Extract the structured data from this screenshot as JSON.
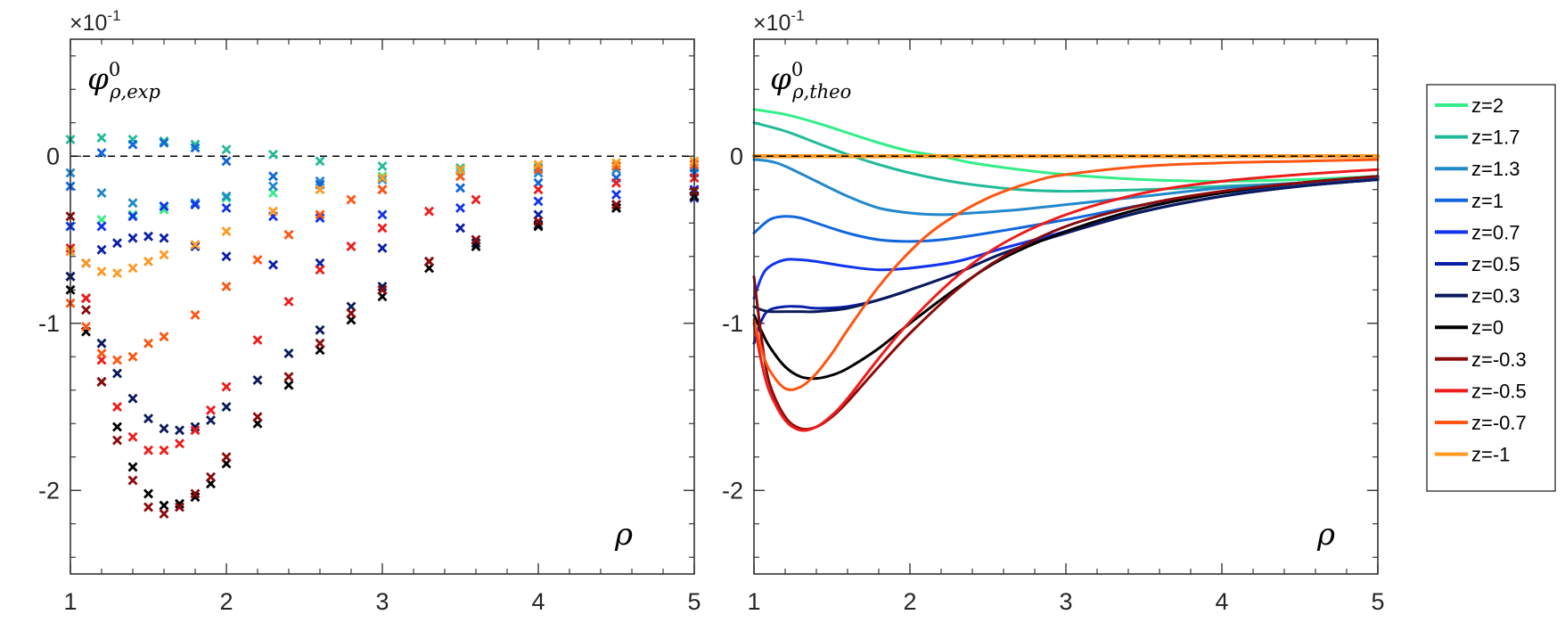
{
  "chart_data": [
    {
      "type": "scatter",
      "marker": "x",
      "y_multiplier": "×10",
      "y_multiplier_exp": "-1",
      "title_base": "φ",
      "title_sup": "0",
      "title_sub": "ρ,exp",
      "xlabel": "ρ",
      "xlim": [
        1,
        5
      ],
      "ylim": [
        -2.5,
        0.7
      ],
      "xticks": [
        "1",
        "2",
        "3",
        "4",
        "5"
      ],
      "yticks": [
        "0",
        "-1",
        "-2"
      ],
      "reference_line": {
        "y": 0,
        "style": "dashed",
        "color": "#000000"
      },
      "series": [
        {
          "name": "z=2",
          "color": "#33ee88",
          "x": [
            1.0,
            1.2,
            1.4,
            1.6,
            1.8,
            2.0,
            2.3,
            2.6,
            3.0,
            3.5,
            4.0,
            4.5,
            5.0
          ],
          "y": [
            -0.42,
            -0.38,
            -0.35,
            -0.32,
            -0.29,
            -0.25,
            -0.22,
            -0.17,
            -0.12,
            -0.09,
            -0.07,
            -0.06,
            -0.05
          ]
        },
        {
          "name": "z=1.7",
          "color": "#22bb99",
          "x": [
            1.0,
            1.2,
            1.4,
            1.6,
            1.8,
            2.0,
            2.3,
            2.6,
            3.0,
            3.5,
            4.0,
            4.5,
            5.0
          ],
          "y": [
            0.1,
            0.11,
            0.1,
            0.09,
            0.07,
            0.04,
            0.01,
            -0.03,
            -0.06,
            -0.07,
            -0.07,
            -0.06,
            -0.05
          ]
        },
        {
          "name": "z=1.3",
          "color": "#2288cc",
          "x": [
            1.0,
            1.2,
            1.4,
            1.6,
            1.8,
            2.0,
            2.3,
            2.6,
            3.0,
            3.5,
            4.0,
            4.5,
            5.0
          ],
          "y": [
            -0.1,
            -0.22,
            -0.28,
            -0.3,
            -0.28,
            -0.24,
            -0.18,
            -0.15,
            -0.14,
            -0.12,
            -0.1,
            -0.08,
            -0.07
          ]
        },
        {
          "name": "z=1",
          "color": "#1166dd",
          "x": [
            1.0,
            1.2,
            1.4,
            1.6,
            1.8,
            2.0,
            2.3,
            2.6,
            3.0,
            3.5,
            4.0,
            4.5,
            5.0
          ],
          "y": [
            -0.18,
            0.02,
            0.07,
            0.08,
            0.05,
            -0.03,
            -0.12,
            -0.17,
            -0.2,
            -0.19,
            -0.16,
            -0.13,
            -0.1
          ]
        },
        {
          "name": "z=0.7",
          "color": "#1133ee",
          "x": [
            1.0,
            1.2,
            1.4,
            1.6,
            1.8,
            2.0,
            2.3,
            2.6,
            3.0,
            3.5,
            4.0,
            4.5,
            5.0
          ],
          "y": [
            -0.42,
            -0.42,
            -0.36,
            -0.3,
            -0.29,
            -0.31,
            -0.36,
            -0.37,
            -0.35,
            -0.31,
            -0.27,
            -0.23,
            -0.2
          ]
        },
        {
          "name": "z=0.5",
          "color": "#0a1eaa",
          "x": [
            1.0,
            1.1,
            1.2,
            1.3,
            1.4,
            1.5,
            1.6,
            1.8,
            2.0,
            2.3,
            2.6,
            3.0,
            3.5,
            4.0,
            4.5,
            5.0
          ],
          "y": [
            -0.72,
            -0.64,
            -0.56,
            -0.52,
            -0.49,
            -0.48,
            -0.49,
            -0.54,
            -0.6,
            -0.65,
            -0.64,
            -0.55,
            -0.43,
            -0.35,
            -0.29,
            -0.25
          ]
        },
        {
          "name": "z=0.3",
          "color": "#0a1a5a",
          "x": [
            1.0,
            1.1,
            1.2,
            1.3,
            1.4,
            1.5,
            1.6,
            1.7,
            1.8,
            1.9,
            2.0,
            2.2,
            2.4,
            2.6,
            2.8,
            3.0,
            3.3,
            3.6,
            4.0,
            4.5,
            5.0
          ],
          "y": [
            -0.72,
            -0.85,
            -1.12,
            -1.3,
            -1.45,
            -1.57,
            -1.63,
            -1.64,
            -1.62,
            -1.58,
            -1.5,
            -1.34,
            -1.18,
            -1.04,
            -0.9,
            -0.78,
            -0.63,
            -0.52,
            -0.41,
            -0.31,
            -0.24
          ]
        },
        {
          "name": "z=0",
          "color": "#000000",
          "x": [
            1.0,
            1.1,
            1.2,
            1.3,
            1.4,
            1.5,
            1.6,
            1.7,
            1.8,
            1.9,
            2.0,
            2.2,
            2.4,
            2.6,
            2.8,
            3.0,
            3.3,
            3.6,
            4.0,
            4.5,
            5.0
          ],
          "y": [
            -0.8,
            -1.05,
            -1.35,
            -1.62,
            -1.86,
            -2.02,
            -2.09,
            -2.08,
            -2.04,
            -1.96,
            -1.84,
            -1.6,
            -1.37,
            -1.16,
            -0.98,
            -0.84,
            -0.67,
            -0.54,
            -0.42,
            -0.31,
            -0.24
          ]
        },
        {
          "name": "z=-0.3",
          "color": "#8b0a0a",
          "x": [
            1.0,
            1.1,
            1.2,
            1.3,
            1.4,
            1.5,
            1.6,
            1.7,
            1.8,
            1.9,
            2.0,
            2.2,
            2.4,
            2.6,
            2.8,
            3.0,
            3.3,
            3.6,
            4.0,
            4.5,
            5.0
          ],
          "y": [
            -0.36,
            -0.92,
            -1.35,
            -1.7,
            -1.94,
            -2.1,
            -2.14,
            -2.1,
            -2.02,
            -1.92,
            -1.8,
            -1.56,
            -1.32,
            -1.12,
            -0.94,
            -0.8,
            -0.63,
            -0.5,
            -0.39,
            -0.29,
            -0.21
          ]
        },
        {
          "name": "z=-0.5",
          "color": "#ee1c1c",
          "x": [
            1.0,
            1.1,
            1.2,
            1.3,
            1.4,
            1.5,
            1.6,
            1.7,
            1.8,
            1.9,
            2.0,
            2.2,
            2.4,
            2.6,
            2.8,
            3.0,
            3.3,
            3.6,
            4.0,
            4.5,
            5.0
          ],
          "y": [
            -0.55,
            -0.85,
            -1.22,
            -1.5,
            -1.68,
            -1.76,
            -1.76,
            -1.72,
            -1.64,
            -1.52,
            -1.38,
            -1.1,
            -0.87,
            -0.68,
            -0.54,
            -0.43,
            -0.33,
            -0.26,
            -0.2,
            -0.16,
            -0.13
          ]
        },
        {
          "name": "z=-0.7",
          "color": "#ff5511",
          "x": [
            1.0,
            1.1,
            1.2,
            1.3,
            1.4,
            1.5,
            1.6,
            1.8,
            2.0,
            2.2,
            2.4,
            2.6,
            2.8,
            3.0,
            3.5,
            4.0,
            4.5,
            5.0
          ],
          "y": [
            -0.88,
            -1.02,
            -1.18,
            -1.22,
            -1.2,
            -1.12,
            -1.08,
            -0.95,
            -0.78,
            -0.62,
            -0.47,
            -0.35,
            -0.26,
            -0.2,
            -0.12,
            -0.08,
            -0.06,
            -0.05
          ]
        },
        {
          "name": "z=-1",
          "color": "#ff9922",
          "x": [
            1.0,
            1.1,
            1.2,
            1.3,
            1.4,
            1.5,
            1.6,
            1.8,
            2.0,
            2.3,
            2.6,
            3.0,
            3.5,
            4.0,
            4.5,
            5.0
          ],
          "y": [
            -0.57,
            -0.64,
            -0.69,
            -0.7,
            -0.67,
            -0.63,
            -0.59,
            -0.53,
            -0.45,
            -0.33,
            -0.2,
            -0.13,
            -0.08,
            -0.05,
            -0.04,
            -0.03
          ]
        }
      ]
    },
    {
      "type": "line",
      "y_multiplier": "×10",
      "y_multiplier_exp": "-1",
      "title_base": "φ",
      "title_sup": "0",
      "title_sub": "ρ,theo",
      "xlabel": "ρ",
      "xlim": [
        1,
        5
      ],
      "ylim": [
        -2.5,
        0.7
      ],
      "xticks": [
        "1",
        "2",
        "3",
        "4",
        "5"
      ],
      "yticks": [
        "0",
        "-1",
        "-2"
      ],
      "reference_line": {
        "y": 0,
        "style": "dashed",
        "color": "#000000"
      },
      "series": [
        {
          "name": "z=2",
          "color": "#33ee88",
          "x": [
            1.0,
            1.2,
            1.4,
            1.6,
            1.8,
            2.0,
            2.2,
            2.4,
            2.7,
            3.0,
            3.5,
            4.0,
            4.5,
            5.0
          ],
          "y": [
            0.28,
            0.25,
            0.2,
            0.14,
            0.08,
            0.03,
            0.0,
            -0.04,
            -0.08,
            -0.11,
            -0.14,
            -0.15,
            -0.14,
            -0.12
          ]
        },
        {
          "name": "z=1.7",
          "color": "#22bb99",
          "x": [
            1.0,
            1.2,
            1.4,
            1.6,
            1.8,
            2.0,
            2.2,
            2.4,
            2.7,
            3.0,
            3.5,
            4.0,
            4.5,
            5.0
          ],
          "y": [
            0.2,
            0.15,
            0.08,
            0.01,
            -0.05,
            -0.1,
            -0.14,
            -0.17,
            -0.2,
            -0.21,
            -0.2,
            -0.18,
            -0.16,
            -0.13
          ]
        },
        {
          "name": "z=1.3",
          "color": "#2288cc",
          "x": [
            1.0,
            1.1,
            1.2,
            1.4,
            1.6,
            1.8,
            2.0,
            2.2,
            2.4,
            2.7,
            3.0,
            3.5,
            4.0,
            4.5,
            5.0
          ],
          "y": [
            -0.02,
            -0.03,
            -0.06,
            -0.15,
            -0.24,
            -0.31,
            -0.34,
            -0.35,
            -0.34,
            -0.32,
            -0.29,
            -0.24,
            -0.19,
            -0.16,
            -0.13
          ]
        },
        {
          "name": "z=1",
          "color": "#1166dd",
          "x": [
            1.0,
            1.1,
            1.2,
            1.3,
            1.4,
            1.6,
            1.8,
            2.0,
            2.2,
            2.5,
            3.0,
            3.5,
            4.0,
            4.5,
            5.0
          ],
          "y": [
            -0.46,
            -0.38,
            -0.36,
            -0.37,
            -0.4,
            -0.46,
            -0.5,
            -0.51,
            -0.5,
            -0.46,
            -0.38,
            -0.29,
            -0.22,
            -0.17,
            -0.13
          ]
        },
        {
          "name": "z=0.7",
          "color": "#1133ee",
          "x": [
            1.0,
            1.05,
            1.1,
            1.2,
            1.3,
            1.4,
            1.6,
            1.8,
            2.0,
            2.3,
            2.6,
            3.0,
            3.5,
            4.0,
            4.5,
            5.0
          ],
          "y": [
            -0.85,
            -0.72,
            -0.66,
            -0.62,
            -0.62,
            -0.63,
            -0.66,
            -0.68,
            -0.67,
            -0.63,
            -0.55,
            -0.45,
            -0.33,
            -0.24,
            -0.18,
            -0.14
          ]
        },
        {
          "name": "z=0.5",
          "color": "#0a1eaa",
          "x": [
            1.0,
            1.05,
            1.1,
            1.2,
            1.3,
            1.4,
            1.6,
            1.8,
            2.0,
            2.3,
            2.6,
            3.0,
            3.5,
            4.0,
            4.5,
            5.0
          ],
          "y": [
            -1.12,
            -0.98,
            -0.92,
            -0.9,
            -0.9,
            -0.91,
            -0.9,
            -0.86,
            -0.8,
            -0.7,
            -0.58,
            -0.46,
            -0.33,
            -0.24,
            -0.18,
            -0.14
          ]
        },
        {
          "name": "z=0.3",
          "color": "#0a1a5a",
          "x": [
            1.0,
            1.05,
            1.1,
            1.2,
            1.3,
            1.4,
            1.6,
            1.8,
            2.0,
            2.3,
            2.6,
            3.0,
            3.5,
            4.0,
            4.5,
            5.0
          ],
          "y": [
            -0.9,
            -0.92,
            -0.93,
            -0.93,
            -0.93,
            -0.93,
            -0.91,
            -0.86,
            -0.8,
            -0.7,
            -0.58,
            -0.46,
            -0.33,
            -0.24,
            -0.18,
            -0.14
          ]
        },
        {
          "name": "z=0",
          "color": "#000000",
          "x": [
            1.0,
            1.05,
            1.1,
            1.2,
            1.3,
            1.4,
            1.5,
            1.6,
            1.8,
            2.0,
            2.3,
            2.6,
            3.0,
            3.5,
            4.0,
            4.5,
            5.0
          ],
          "y": [
            -0.95,
            -1.05,
            -1.14,
            -1.26,
            -1.32,
            -1.33,
            -1.31,
            -1.27,
            -1.15,
            -1.0,
            -0.79,
            -0.61,
            -0.45,
            -0.31,
            -0.22,
            -0.16,
            -0.12
          ]
        },
        {
          "name": "z=-0.3",
          "color": "#8b0a0a",
          "x": [
            1.0,
            1.05,
            1.1,
            1.2,
            1.3,
            1.4,
            1.5,
            1.6,
            1.8,
            2.0,
            2.3,
            2.6,
            3.0,
            3.5,
            4.0,
            4.5,
            5.0
          ],
          "y": [
            -0.72,
            -1.1,
            -1.36,
            -1.56,
            -1.63,
            -1.62,
            -1.56,
            -1.47,
            -1.26,
            -1.06,
            -0.8,
            -0.6,
            -0.42,
            -0.29,
            -0.21,
            -0.16,
            -0.12
          ]
        },
        {
          "name": "z=-0.5",
          "color": "#ee1c1c",
          "x": [
            1.0,
            1.05,
            1.1,
            1.2,
            1.3,
            1.4,
            1.5,
            1.6,
            1.8,
            2.0,
            2.3,
            2.6,
            3.0,
            3.5,
            4.0,
            4.5,
            5.0
          ],
          "y": [
            -1.0,
            -1.24,
            -1.41,
            -1.58,
            -1.64,
            -1.62,
            -1.55,
            -1.45,
            -1.21,
            -0.99,
            -0.72,
            -0.52,
            -0.35,
            -0.22,
            -0.15,
            -0.11,
            -0.08
          ]
        },
        {
          "name": "z=-0.7",
          "color": "#ff5511",
          "x": [
            1.0,
            1.05,
            1.1,
            1.2,
            1.3,
            1.4,
            1.5,
            1.6,
            1.8,
            2.0,
            2.2,
            2.5,
            2.8,
            3.0,
            3.5,
            4.0,
            4.5,
            5.0
          ],
          "y": [
            -0.98,
            -1.16,
            -1.28,
            -1.39,
            -1.38,
            -1.3,
            -1.18,
            -1.04,
            -0.78,
            -0.57,
            -0.41,
            -0.25,
            -0.15,
            -0.11,
            -0.06,
            -0.04,
            -0.03,
            -0.02
          ]
        },
        {
          "name": "z=-1",
          "color": "#ff9922",
          "x": [
            1.0,
            2.0,
            3.0,
            4.0,
            5.0
          ],
          "y": [
            0.0,
            0.0,
            0.0,
            0.0,
            0.0
          ]
        }
      ]
    }
  ]
}
